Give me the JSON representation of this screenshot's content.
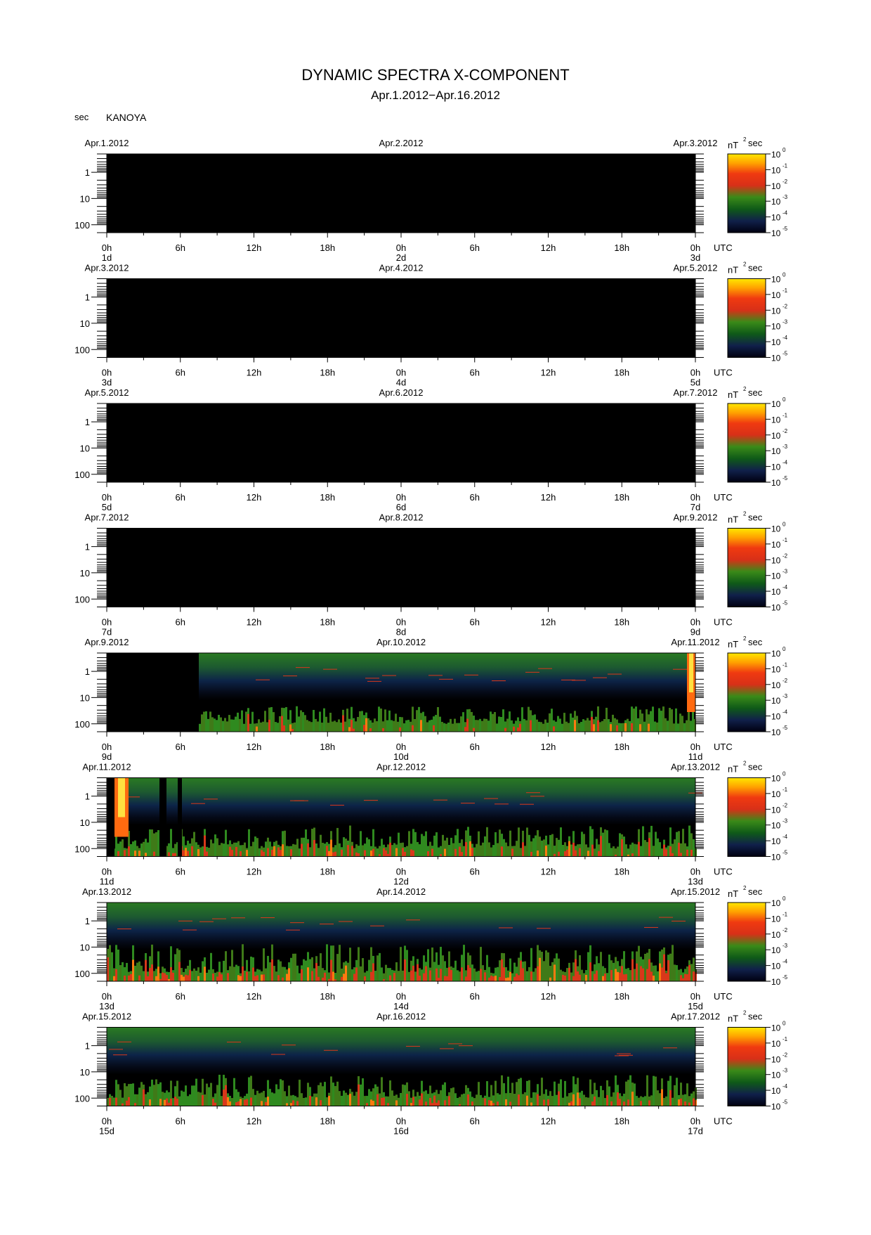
{
  "header": {
    "title": "DYNAMIC SPECTRA X-COMPONENT",
    "subtitle": "Apr.1.2012−Apr.16.2012",
    "station": "KANOYA"
  },
  "x_axis": {
    "xlim": [
      0,
      48
    ],
    "unit": "UTC",
    "xticks": [
      {
        "value": 0,
        "label": "0h"
      },
      {
        "value": 6,
        "label": "6h"
      },
      {
        "value": 12,
        "label": "12h"
      },
      {
        "value": 18,
        "label": "18h"
      },
      {
        "value": 24,
        "label": "0h"
      },
      {
        "value": 30,
        "label": "6h"
      },
      {
        "value": 36,
        "label": "12h"
      },
      {
        "value": 42,
        "label": "18h"
      },
      {
        "value": 48,
        "label": "0h"
      }
    ]
  },
  "y_axis": {
    "label": "sec",
    "ylim": [
      0.2,
      200
    ],
    "log": true,
    "yticks": [
      1,
      10,
      100
    ]
  },
  "colorbar": {
    "unit": "nT",
    "unit_power": 2,
    "unit_suffix": "sec",
    "clim": [
      1e-05,
      1
    ],
    "log": true,
    "ticks": [
      {
        "value": 1,
        "label": "10",
        "power": 0
      },
      {
        "value": 0.1,
        "label": "10",
        "power": -1
      },
      {
        "value": 0.01,
        "label": "10",
        "power": -2
      },
      {
        "value": 0.001,
        "label": "10",
        "power": -3
      },
      {
        "value": 0.0001,
        "label": "10",
        "power": -4
      },
      {
        "value": 1e-05,
        "label": "10",
        "power": -5
      }
    ]
  },
  "chart_data": [
    {
      "type": "spectrogram",
      "date_labels": [
        "Apr.1.2012",
        "Apr.2.2012",
        "Apr.3.2012"
      ],
      "day_labels": [
        "1d",
        "2d",
        "3d"
      ]
    },
    {
      "type": "spectrogram",
      "date_labels": [
        "Apr.3.2012",
        "Apr.4.2012",
        "Apr.5.2012"
      ],
      "day_labels": [
        "3d",
        "4d",
        "5d"
      ]
    },
    {
      "type": "spectrogram",
      "date_labels": [
        "Apr.5.2012",
        "Apr.6.2012",
        "Apr.7.2012"
      ],
      "day_labels": [
        "5d",
        "6d",
        "7d"
      ]
    },
    {
      "type": "spectrogram",
      "date_labels": [
        "Apr.7.2012",
        "Apr.8.2012",
        "Apr.9.2012"
      ],
      "day_labels": [
        "7d",
        "8d",
        "9d"
      ]
    },
    {
      "type": "spectrogram",
      "date_labels": [
        "Apr.9.2012",
        "Apr.10.2012",
        "Apr.11.2012"
      ],
      "day_labels": [
        "9d",
        "10d",
        "11d"
      ]
    },
    {
      "type": "spectrogram",
      "date_labels": [
        "Apr.11.2012",
        "Apr.12.2012",
        "Apr.13.2012"
      ],
      "day_labels": [
        "11d",
        "12d",
        "13d"
      ]
    },
    {
      "type": "spectrogram",
      "date_labels": [
        "Apr.13.2012",
        "Apr.14.2012",
        "Apr.15.2012"
      ],
      "day_labels": [
        "13d",
        "14d",
        "15d"
      ]
    },
    {
      "type": "spectrogram",
      "date_labels": [
        "Apr.15.2012",
        "Apr.16.2012",
        "Apr.17.2012"
      ],
      "day_labels": [
        "15d",
        "16d",
        "17d"
      ]
    }
  ]
}
